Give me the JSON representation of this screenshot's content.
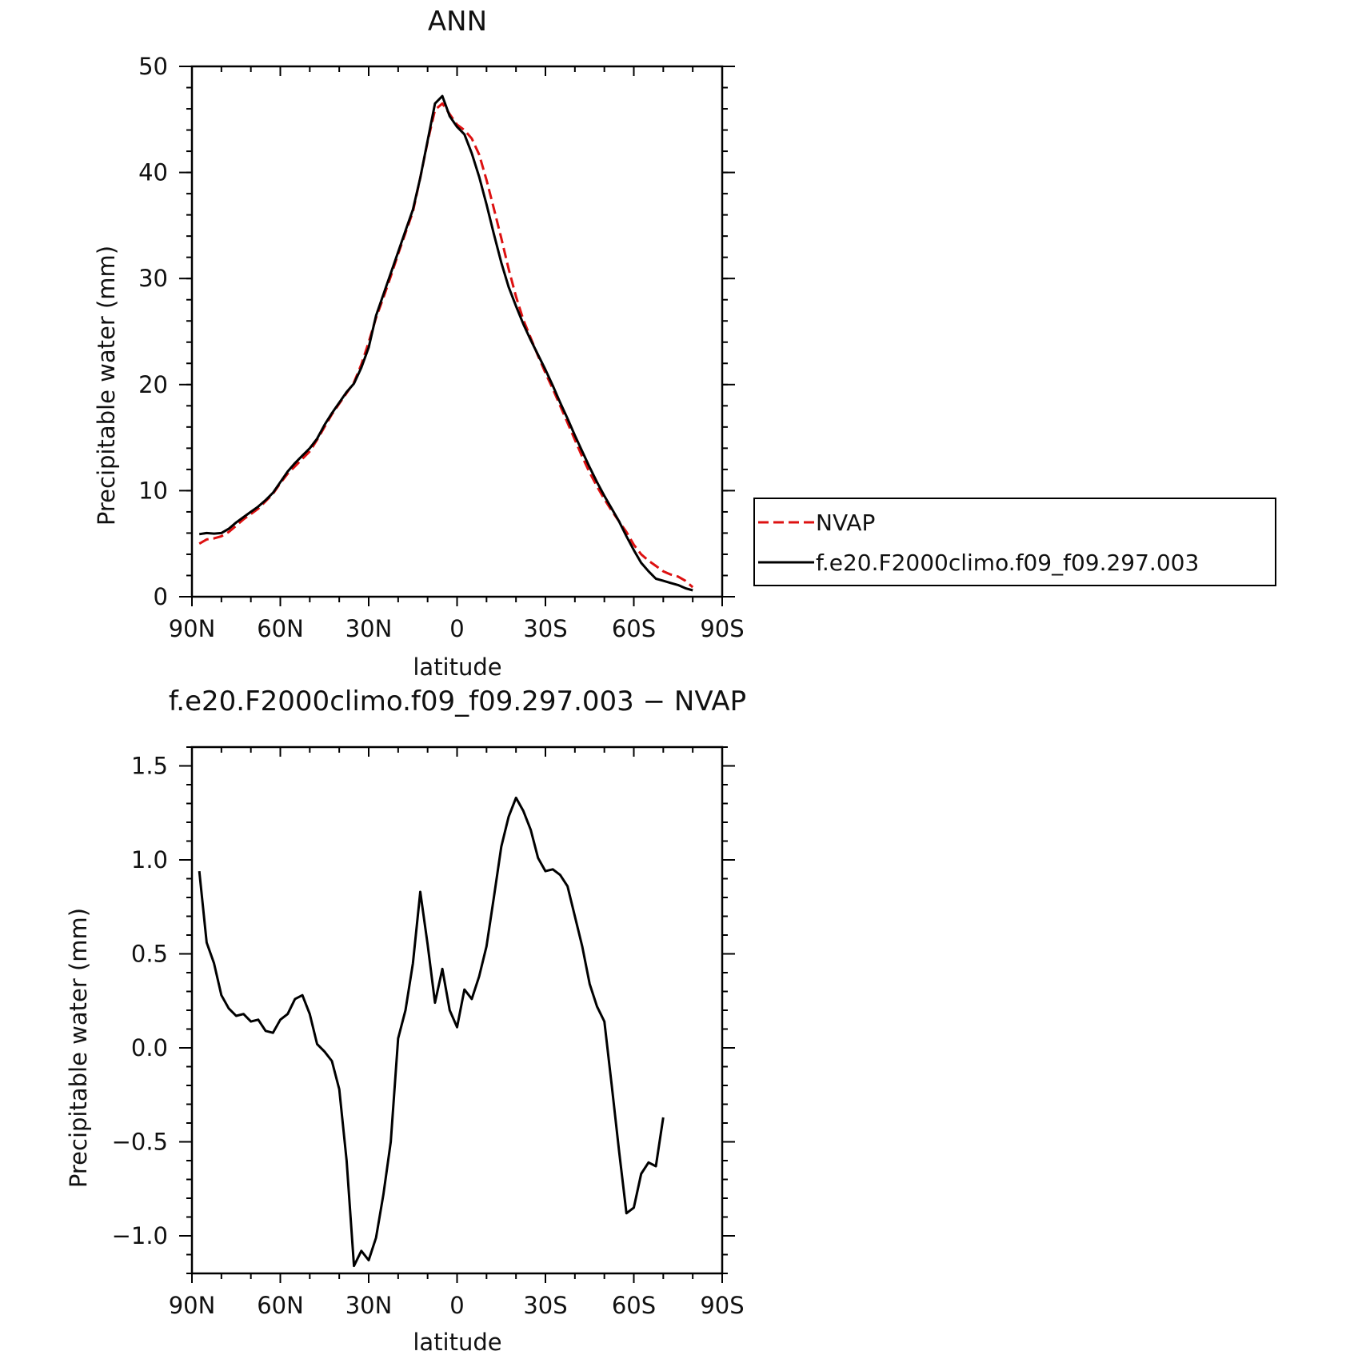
{
  "chart_data": [
    {
      "type": "line",
      "title": "ANN",
      "xlabel": "latitude",
      "ylabel": "Precipitable water (mm)",
      "xlim": [
        90,
        -90
      ],
      "ylim": [
        0,
        50
      ],
      "x_tick_labels": [
        "90N",
        "60N",
        "30N",
        "0",
        "30S",
        "60S",
        "90S"
      ],
      "y_tick_labels": [
        "0",
        "10",
        "20",
        "30",
        "40",
        "50"
      ],
      "legend_position": "right",
      "series": [
        {
          "name": "NVAP",
          "color": "#dd1111",
          "dash": "dashed",
          "points": [
            [
              87.5,
              5.0
            ],
            [
              85,
              5.4
            ],
            [
              82.5,
              5.5
            ],
            [
              80,
              5.7
            ],
            [
              77.5,
              6.1
            ],
            [
              75,
              6.7
            ],
            [
              72.5,
              7.3
            ],
            [
              70,
              7.8
            ],
            [
              67.5,
              8.3
            ],
            [
              65,
              9.0
            ],
            [
              62.5,
              9.7
            ],
            [
              60,
              10.7
            ],
            [
              57.5,
              11.6
            ],
            [
              55,
              12.3
            ],
            [
              52.5,
              13.0
            ],
            [
              50,
              13.7
            ],
            [
              47.5,
              14.8
            ],
            [
              45,
              16.0
            ],
            [
              42.5,
              17.2
            ],
            [
              40,
              18.2
            ],
            [
              37.5,
              19.2
            ],
            [
              35,
              20.2
            ],
            [
              32.5,
              21.9
            ],
            [
              30,
              24.0
            ],
            [
              27.5,
              26.3
            ],
            [
              25,
              28.2
            ],
            [
              22.5,
              30.2
            ],
            [
              20,
              32.3
            ],
            [
              17.5,
              34.3
            ],
            [
              15,
              36.3
            ],
            [
              12.5,
              39.5
            ],
            [
              10,
              42.9
            ],
            [
              7.5,
              45.9
            ],
            [
              5,
              46.5
            ],
            [
              2.5,
              45.5
            ],
            [
              0,
              44.5
            ],
            [
              -2.5,
              44.0
            ],
            [
              -5,
              43.2
            ],
            [
              -7.5,
              41.7
            ],
            [
              -10,
              39.3
            ],
            [
              -12.5,
              36.6
            ],
            [
              -15,
              33.8
            ],
            [
              -17.5,
              30.9
            ],
            [
              -20,
              28.3
            ],
            [
              -22.5,
              26.1
            ],
            [
              -25,
              24.4
            ],
            [
              -27.5,
              22.7
            ],
            [
              -30,
              21.1
            ],
            [
              -32.5,
              19.6
            ],
            [
              -35,
              18.0
            ],
            [
              -37.5,
              16.4
            ],
            [
              -40,
              14.8
            ],
            [
              -42.5,
              13.2
            ],
            [
              -45,
              11.7
            ],
            [
              -47.5,
              10.4
            ],
            [
              -50,
              9.2
            ],
            [
              -52.5,
              8.1
            ],
            [
              -55,
              7.1
            ],
            [
              -57.5,
              6.1
            ],
            [
              -60,
              4.9
            ],
            [
              -62.5,
              4.0
            ],
            [
              -65,
              3.4
            ],
            [
              -67.5,
              2.9
            ],
            [
              -70,
              2.4
            ],
            [
              -72.5,
              2.1
            ],
            [
              -75,
              1.9
            ],
            [
              -77.5,
              1.5
            ],
            [
              -80,
              0.9
            ]
          ]
        },
        {
          "name": "f.e20.F2000climo.f09_f09.297.003",
          "color": "#000000",
          "dash": "solid",
          "points": [
            [
              87.5,
              5.9
            ],
            [
              85,
              6.0
            ],
            [
              82.5,
              5.95
            ],
            [
              80,
              6.0
            ],
            [
              77.5,
              6.4
            ],
            [
              75,
              7.0
            ],
            [
              72.5,
              7.5
            ],
            [
              70,
              8.0
            ],
            [
              67.5,
              8.5
            ],
            [
              65,
              9.1
            ],
            [
              62.5,
              9.8
            ],
            [
              60,
              10.8
            ],
            [
              57.5,
              11.8
            ],
            [
              55,
              12.6
            ],
            [
              52.5,
              13.3
            ],
            [
              50,
              14.0
            ],
            [
              47.5,
              14.9
            ],
            [
              45,
              16.2
            ],
            [
              42.5,
              17.3
            ],
            [
              40,
              18.3
            ],
            [
              37.5,
              19.3
            ],
            [
              35,
              20.1
            ],
            [
              32.5,
              21.6
            ],
            [
              30,
              23.5
            ],
            [
              27.5,
              26.5
            ],
            [
              25,
              28.5
            ],
            [
              22.5,
              30.5
            ],
            [
              20,
              32.5
            ],
            [
              17.5,
              34.5
            ],
            [
              15,
              36.5
            ],
            [
              12.5,
              39.5
            ],
            [
              10,
              43.0
            ],
            [
              7.5,
              46.5
            ],
            [
              5,
              47.2
            ],
            [
              2.5,
              45.3
            ],
            [
              0,
              44.3
            ],
            [
              -2.5,
              43.6
            ],
            [
              -5,
              41.8
            ],
            [
              -7.5,
              39.6
            ],
            [
              -10,
              37.0
            ],
            [
              -12.5,
              34.2
            ],
            [
              -15,
              31.5
            ],
            [
              -17.5,
              29.2
            ],
            [
              -20,
              27.4
            ],
            [
              -22.5,
              25.7
            ],
            [
              -25,
              24.2
            ],
            [
              -27.5,
              22.8
            ],
            [
              -30,
              21.4
            ],
            [
              -32.5,
              19.9
            ],
            [
              -35,
              18.3
            ],
            [
              -37.5,
              16.8
            ],
            [
              -40,
              15.2
            ],
            [
              -42.5,
              13.7
            ],
            [
              -45,
              12.2
            ],
            [
              -47.5,
              10.8
            ],
            [
              -50,
              9.5
            ],
            [
              -52.5,
              8.3
            ],
            [
              -55,
              7.1
            ],
            [
              -57.5,
              5.7
            ],
            [
              -60,
              4.4
            ],
            [
              -62.5,
              3.2
            ],
            [
              -65,
              2.4
            ],
            [
              -67.5,
              1.7
            ],
            [
              -70,
              1.5
            ],
            [
              -72.5,
              1.3
            ],
            [
              -75,
              1.1
            ],
            [
              -77.5,
              0.8
            ],
            [
              -80,
              0.6
            ]
          ]
        }
      ]
    },
    {
      "type": "line",
      "title": "f.e20.F2000climo.f09_f09.297.003 − NVAP",
      "xlabel": "latitude",
      "ylabel": "Precipitable water (mm)",
      "xlim": [
        90,
        -90
      ],
      "ylim": [
        -1.2,
        1.6
      ],
      "x_tick_labels": [
        "90N",
        "60N",
        "30N",
        "0",
        "30S",
        "60S",
        "90S"
      ],
      "y_tick_labels": [
        "−1.0",
        "−0.5",
        "0.0",
        "0.5",
        "1.0",
        "1.5"
      ],
      "series": [
        {
          "color": "#000000",
          "dash": "solid",
          "points": [
            [
              87.5,
              0.94
            ],
            [
              85,
              0.56
            ],
            [
              82.5,
              0.45
            ],
            [
              80,
              0.28
            ],
            [
              77.5,
              0.21
            ],
            [
              75,
              0.17
            ],
            [
              72.5,
              0.18
            ],
            [
              70,
              0.14
            ],
            [
              67.5,
              0.15
            ],
            [
              65,
              0.09
            ],
            [
              62.5,
              0.08
            ],
            [
              60,
              0.15
            ],
            [
              57.5,
              0.18
            ],
            [
              55,
              0.26
            ],
            [
              52.5,
              0.28
            ],
            [
              50,
              0.18
            ],
            [
              47.5,
              0.02
            ],
            [
              45,
              -0.02
            ],
            [
              42.5,
              -0.07
            ],
            [
              40,
              -0.22
            ],
            [
              37.5,
              -0.6
            ],
            [
              35,
              -1.16
            ],
            [
              32.5,
              -1.08
            ],
            [
              30,
              -1.13
            ],
            [
              27.5,
              -1.01
            ],
            [
              25,
              -0.78
            ],
            [
              22.5,
              -0.5
            ],
            [
              20,
              0.05
            ],
            [
              17.5,
              0.2
            ],
            [
              15,
              0.45
            ],
            [
              12.5,
              0.83
            ],
            [
              10,
              0.55
            ],
            [
              7.5,
              0.24
            ],
            [
              5,
              0.42
            ],
            [
              2.5,
              0.2
            ],
            [
              0,
              0.11
            ],
            [
              -2.5,
              0.31
            ],
            [
              -5,
              0.26
            ],
            [
              -7.5,
              0.38
            ],
            [
              -10,
              0.54
            ],
            [
              -12.5,
              0.8
            ],
            [
              -15,
              1.07
            ],
            [
              -17.5,
              1.23
            ],
            [
              -20,
              1.33
            ],
            [
              -22.5,
              1.26
            ],
            [
              -25,
              1.16
            ],
            [
              -27.5,
              1.01
            ],
            [
              -30,
              0.94
            ],
            [
              -32.5,
              0.95
            ],
            [
              -35,
              0.92
            ],
            [
              -37.5,
              0.86
            ],
            [
              -40,
              0.7
            ],
            [
              -42.5,
              0.54
            ],
            [
              -45,
              0.34
            ],
            [
              -47.5,
              0.22
            ],
            [
              -50,
              0.14
            ],
            [
              -52.5,
              -0.2
            ],
            [
              -55,
              -0.55
            ],
            [
              -57.5,
              -0.88
            ],
            [
              -60,
              -0.85
            ],
            [
              -62.5,
              -0.67
            ],
            [
              -65,
              -0.61
            ],
            [
              -67.5,
              -0.63
            ],
            [
              -70,
              -0.37
            ]
          ]
        }
      ]
    }
  ]
}
